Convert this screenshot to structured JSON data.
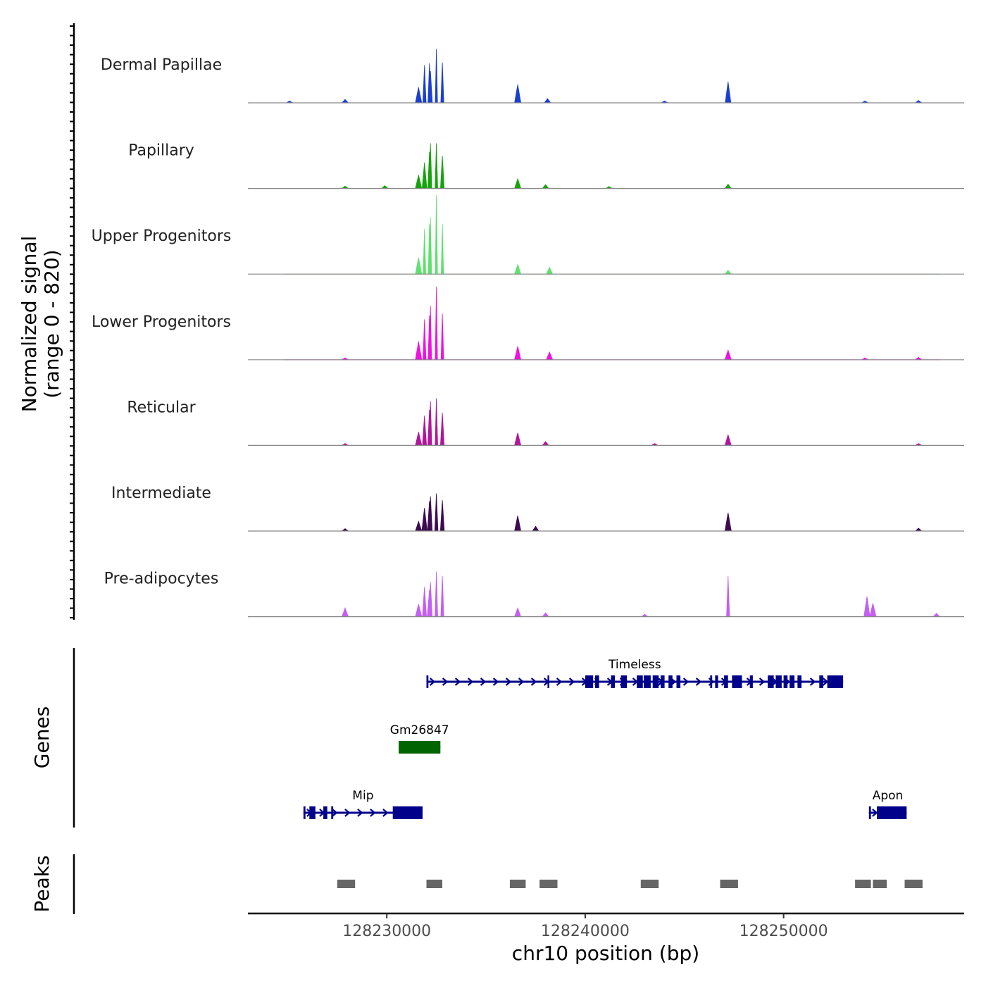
{
  "chart_data": {
    "type": "area",
    "chromosome": "chr10",
    "xlabel": "chr10 position (bp)",
    "xlim": [
      128223000,
      128259100
    ],
    "xticks": [
      128230000,
      128240000,
      128250000
    ],
    "xtick_labels": [
      "128230000",
      "128240000",
      "128250000"
    ],
    "signal_ylabel": [
      "Normalized signal",
      "(range 0 - 820)"
    ],
    "signal_range": [
      0,
      820
    ],
    "genes_ylabel": "Genes",
    "peaks_ylabel": "Peaks",
    "tracks": [
      {
        "name": "Dermal Papillae",
        "color": "#1b3fd1",
        "peaks": [
          [
            128232200,
            330
          ],
          [
            128232500,
            560
          ],
          [
            128232150,
            410
          ],
          [
            128231900,
            390
          ],
          [
            128232800,
            420
          ],
          [
            128231600,
            160
          ],
          [
            128236600,
            190
          ],
          [
            128238100,
            45
          ],
          [
            128247200,
            220
          ],
          [
            128227900,
            35
          ],
          [
            128225100,
            20
          ],
          [
            128244000,
            20
          ],
          [
            128254100,
            20
          ],
          [
            128256800,
            25
          ]
        ]
      },
      {
        "name": "Papillary",
        "color": "#16a30e",
        "peaks": [
          [
            128232200,
            470
          ],
          [
            128232500,
            470
          ],
          [
            128232150,
            380
          ],
          [
            128231900,
            270
          ],
          [
            128232800,
            340
          ],
          [
            128231600,
            140
          ],
          [
            128236600,
            100
          ],
          [
            128238000,
            40
          ],
          [
            128247200,
            45
          ],
          [
            128227900,
            25
          ],
          [
            128229900,
            30
          ],
          [
            128241200,
            20
          ]
        ]
      },
      {
        "name": "Upper Progenitors",
        "color": "#60e06e",
        "peaks": [
          [
            128232200,
            590
          ],
          [
            128232500,
            820
          ],
          [
            128232150,
            520
          ],
          [
            128231900,
            470
          ],
          [
            128232800,
            520
          ],
          [
            128231600,
            170
          ],
          [
            128236600,
            100
          ],
          [
            128238200,
            70
          ],
          [
            128247200,
            40
          ]
        ]
      },
      {
        "name": "Lower Progenitors",
        "color": "#f011e2",
        "peaks": [
          [
            128232200,
            560
          ],
          [
            128232500,
            760
          ],
          [
            128232150,
            460
          ],
          [
            128231900,
            420
          ],
          [
            128232800,
            480
          ],
          [
            128231600,
            190
          ],
          [
            128236600,
            140
          ],
          [
            128238200,
            80
          ],
          [
            128247200,
            100
          ],
          [
            128227900,
            20
          ],
          [
            128256800,
            25
          ],
          [
            128254100,
            20
          ]
        ]
      },
      {
        "name": "Reticular",
        "color": "#b0169b",
        "peaks": [
          [
            128232200,
            460
          ],
          [
            128232500,
            490
          ],
          [
            128232150,
            370
          ],
          [
            128231900,
            310
          ],
          [
            128232800,
            340
          ],
          [
            128231600,
            140
          ],
          [
            128236600,
            130
          ],
          [
            128238000,
            40
          ],
          [
            128247200,
            110
          ],
          [
            128227900,
            20
          ],
          [
            128243500,
            20
          ],
          [
            128256800,
            20
          ]
        ]
      },
      {
        "name": "Intermediate",
        "color": "#3e0b52",
        "peaks": [
          [
            128232200,
            360
          ],
          [
            128232500,
            390
          ],
          [
            128232150,
            310
          ],
          [
            128231900,
            240
          ],
          [
            128232800,
            320
          ],
          [
            128231600,
            100
          ],
          [
            128236600,
            160
          ],
          [
            128237500,
            50
          ],
          [
            128247200,
            190
          ],
          [
            128227900,
            25
          ],
          [
            128256800,
            30
          ]
        ]
      },
      {
        "name": "Pre-adipocytes",
        "color": "#c35ff2",
        "peaks": [
          [
            128232200,
            360
          ],
          [
            128232500,
            470
          ],
          [
            128232150,
            280
          ],
          [
            128231900,
            310
          ],
          [
            128232800,
            420
          ],
          [
            128231600,
            130
          ],
          [
            128236600,
            90
          ],
          [
            128238000,
            40
          ],
          [
            128247200,
            420
          ],
          [
            128227900,
            90
          ],
          [
            128254200,
            210
          ],
          [
            128254500,
            140
          ],
          [
            128257700,
            35
          ],
          [
            128243000,
            25
          ]
        ]
      }
    ],
    "genes": [
      {
        "name": "Timeless",
        "row": 0,
        "color": "#00008b",
        "strand": "+",
        "start": 128232000,
        "end": 128253000,
        "exons": [
          [
            128232000,
            128232100
          ],
          [
            128238100,
            128238150
          ],
          [
            128240000,
            128240400
          ],
          [
            128240500,
            128240700
          ],
          [
            128241300,
            128241500
          ],
          [
            128241800,
            128242100
          ],
          [
            128242600,
            128242900
          ],
          [
            128242950,
            128243300
          ],
          [
            128243400,
            128243700
          ],
          [
            128243800,
            128244000
          ],
          [
            128244200,
            128244400
          ],
          [
            128244600,
            128244800
          ],
          [
            128246300,
            128246400
          ],
          [
            128246550,
            128246700
          ],
          [
            128247000,
            128247200
          ],
          [
            128247400,
            128247900
          ],
          [
            128248300,
            128248450
          ],
          [
            128249200,
            128249500
          ],
          [
            128249600,
            128249900
          ],
          [
            128250000,
            128250200
          ],
          [
            128250300,
            128250550
          ],
          [
            128250700,
            128250900
          ],
          [
            128251800,
            128252000
          ],
          [
            128252200,
            128253000
          ]
        ]
      },
      {
        "name": "Gm26847",
        "row": 1,
        "color": "#006400",
        "strand": "-",
        "start": 128230600,
        "end": 128232700,
        "exons": [
          [
            128230600,
            128232700
          ]
        ]
      },
      {
        "name": "Mip",
        "row": 2,
        "color": "#00008b",
        "strand": "+",
        "start": 128225800,
        "end": 128231800,
        "exons": [
          [
            128225800,
            128225900
          ],
          [
            128226100,
            128226400
          ],
          [
            128226800,
            128227000
          ],
          [
            128227200,
            128227300
          ],
          [
            128230300,
            128231800
          ]
        ]
      },
      {
        "name": "Apon",
        "row": 2,
        "color": "#00008b",
        "strand": "+",
        "start": 128254300,
        "end": 128256200,
        "exons": [
          [
            128254300,
            128254400
          ],
          [
            128254700,
            128256200
          ]
        ]
      }
    ],
    "peaks": [
      [
        128227500,
        128228400
      ],
      [
        128232000,
        128232800
      ],
      [
        128236200,
        128237000
      ],
      [
        128237700,
        128238600
      ],
      [
        128242800,
        128243700
      ],
      [
        128246800,
        128247700
      ],
      [
        128253600,
        128254400
      ],
      [
        128254500,
        128255200
      ],
      [
        128256100,
        128257000
      ]
    ]
  }
}
